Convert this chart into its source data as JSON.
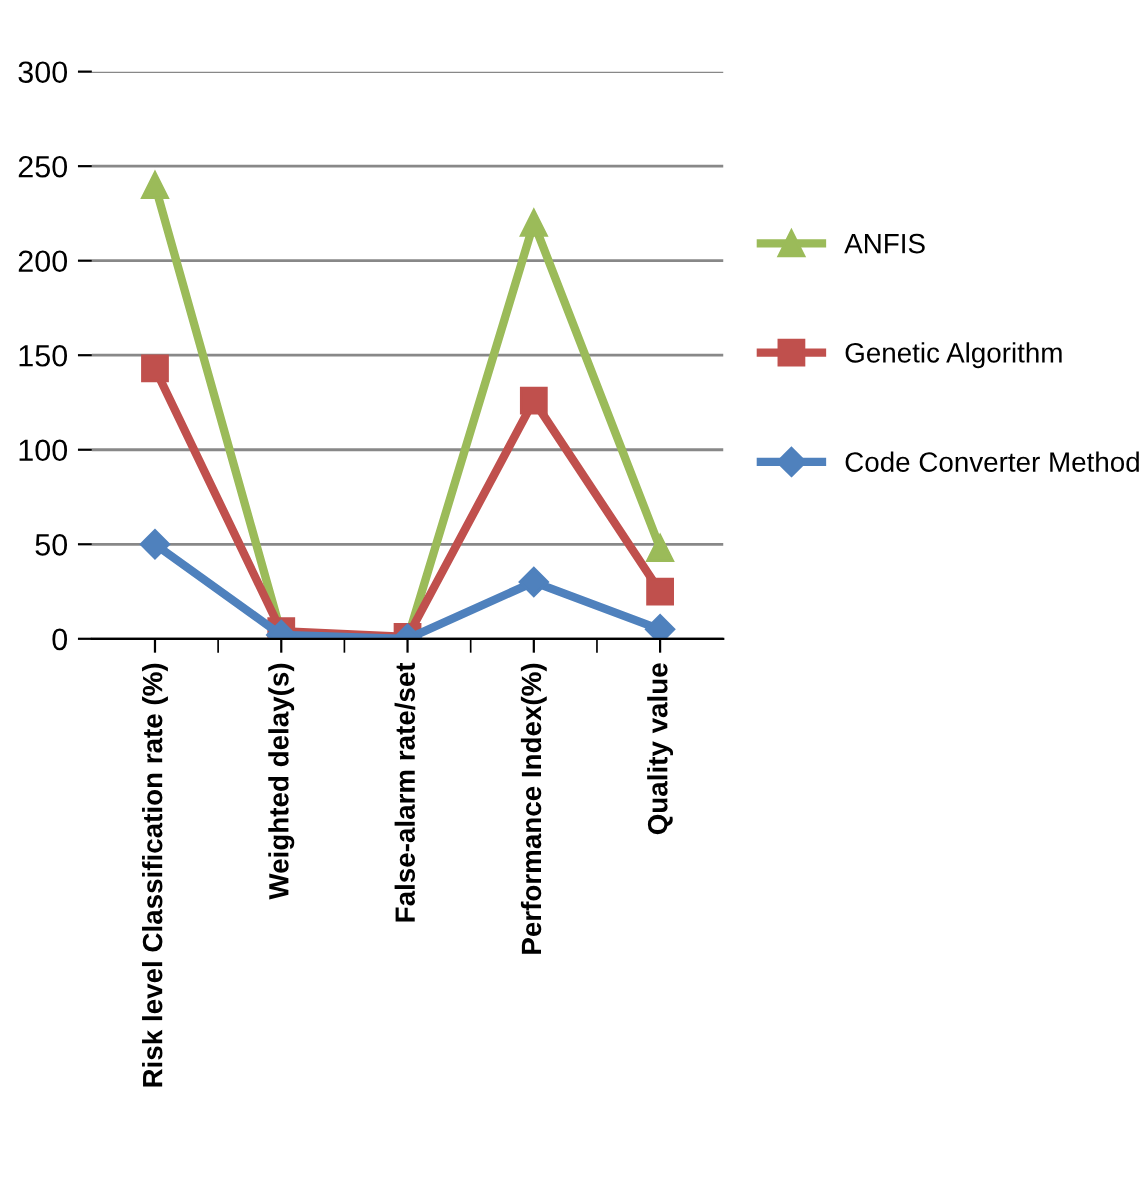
{
  "chart_data": {
    "type": "line",
    "categories": [
      "Risk level Classification rate (%)",
      "Weighted delay(s)",
      "False-alarm rate/set",
      "Performance Index(%)",
      "Quality value"
    ],
    "series": [
      {
        "name": "ANFIS",
        "color": "#9bbb59",
        "marker": "triangle",
        "values": [
          240,
          3,
          0,
          220,
          48
        ]
      },
      {
        "name": "Genetic Algorithm",
        "color": "#c0504d",
        "marker": "square",
        "values": [
          143,
          4,
          1,
          126,
          25
        ]
      },
      {
        "name": "Code Converter Method",
        "color": "#4f81bd",
        "marker": "diamond",
        "values": [
          50,
          2,
          0,
          30,
          5
        ]
      }
    ],
    "ylim": [
      0,
      300
    ],
    "yticks": [
      0,
      50,
      100,
      150,
      200,
      250,
      300
    ],
    "grid": "y",
    "legend": "right"
  }
}
